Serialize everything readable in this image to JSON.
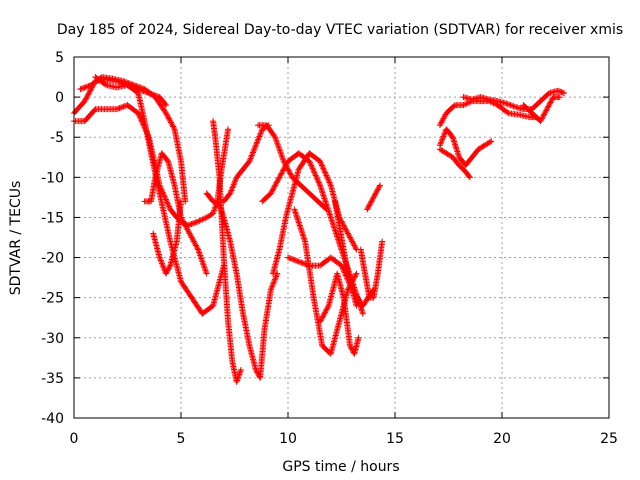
{
  "chart_data": {
    "type": "scatter",
    "title": "Day 185 of 2024, Sidereal Day-to-day VTEC variation (SDTVAR) for receiver xmis",
    "xlabel": "GPS time / hours",
    "ylabel": "SDTVAR / TECUs",
    "xlim": [
      0,
      25
    ],
    "ylim": [
      -40,
      5
    ],
    "xticks": [
      0,
      5,
      10,
      15,
      20,
      25
    ],
    "yticks": [
      5,
      0,
      -5,
      -10,
      -15,
      -20,
      -25,
      -30,
      -35,
      -40
    ],
    "grid": true,
    "marker": "plus",
    "color": "#ff0000",
    "series": [
      {
        "x": [
          0,
          0.5,
          1,
          1.5,
          2,
          2.5,
          3,
          3.3,
          3.6,
          4,
          4.5,
          5,
          5.5,
          6,
          6.5,
          7
        ],
        "y": [
          -2,
          -0.5,
          2,
          2.2,
          2,
          1.5,
          0.5,
          -3,
          -7,
          -12,
          -18,
          -23,
          -25,
          -27,
          -26,
          -21
        ]
      },
      {
        "x": [
          0,
          0.5,
          1,
          1.5,
          2,
          2.5,
          3,
          3.5,
          4,
          4.5,
          4.8,
          5,
          5.3
        ],
        "y": [
          -3,
          -3,
          -1.5,
          -1.5,
          -1.5,
          -1,
          -2,
          -5,
          -11,
          -14,
          -15,
          -15.5,
          -16
        ]
      },
      {
        "x": [
          0.3,
          0.8,
          1.3,
          1.8,
          2.3,
          2.8,
          3.3,
          3.8,
          4.3,
          4.7,
          5,
          5.2
        ],
        "y": [
          1,
          1.5,
          2.5,
          2.3,
          2,
          1.5,
          1,
          0,
          -2,
          -4,
          -8,
          -13
        ]
      },
      {
        "x": [
          3.3,
          3.6,
          3.8,
          4.1,
          4.4,
          4.7,
          5,
          5.4,
          5.8,
          6.2
        ],
        "y": [
          -13,
          -13,
          -10,
          -7,
          -8,
          -11,
          -15,
          -17,
          -19,
          -22
        ]
      },
      {
        "x": [
          3.7,
          4,
          4.3,
          4.5,
          4.8,
          5
        ],
        "y": [
          -17,
          -20,
          -22,
          -21,
          -18,
          -13
        ]
      },
      {
        "x": [
          1,
          1.5,
          2,
          2.5,
          3,
          3.5,
          4,
          4.3
        ],
        "y": [
          2.5,
          1.5,
          1.2,
          1.5,
          1,
          0.5,
          0,
          -1
        ]
      },
      {
        "x": [
          5.3,
          5.8,
          6.2,
          6.5,
          6.7,
          6.9,
          7.2
        ],
        "y": [
          -16,
          -15.5,
          -15,
          -14.5,
          -13,
          -9,
          -4
        ]
      },
      {
        "x": [
          6.2,
          6.5,
          6.8,
          7,
          7.3,
          7.6,
          7.9,
          8.2,
          8.5,
          8.7,
          8.9,
          9.2,
          9.5
        ],
        "y": [
          -12,
          -13,
          -13.5,
          -15,
          -18,
          -22,
          -27,
          -31,
          -34,
          -35,
          -29,
          -24,
          -22
        ]
      },
      {
        "x": [
          6.5,
          6.6,
          6.8,
          7,
          7.2,
          7.4,
          7.6,
          7.8
        ],
        "y": [
          -3,
          -5,
          -10,
          -20,
          -28,
          -33,
          -35.5,
          -34
        ]
      },
      {
        "x": [
          7,
          7.3,
          7.6,
          7.9,
          8.2,
          8.5,
          8.8,
          9.1
        ],
        "y": [
          -13,
          -12,
          -10,
          -9,
          -8,
          -6,
          -4,
          -3.5
        ]
      },
      {
        "x": [
          8.6,
          9,
          9.4,
          9.8,
          10.2,
          10.6,
          11,
          11.4,
          11.8
        ],
        "y": [
          -3.5,
          -3.5,
          -5,
          -8,
          -10,
          -11,
          -12,
          -13,
          -14
        ]
      },
      {
        "x": [
          8.8,
          9.2,
          9.6,
          10,
          10.5,
          11,
          11.5,
          12,
          12.5,
          13,
          13.5
        ],
        "y": [
          -13,
          -12,
          -10,
          -8,
          -7,
          -8,
          -11,
          -15,
          -19,
          -23,
          -27
        ]
      },
      {
        "x": [
          9.3,
          9.6,
          9.9,
          10.2,
          10.5,
          11,
          11.5,
          12,
          12.4,
          12.8,
          13.2
        ],
        "y": [
          -22,
          -19,
          -15,
          -12,
          -9,
          -7,
          -8,
          -11,
          -15,
          -17,
          -19
        ]
      },
      {
        "x": [
          10,
          10.5,
          11,
          11.5,
          12,
          12.5,
          13,
          13.5,
          14
        ],
        "y": [
          -20,
          -20.5,
          -21,
          -21,
          -20,
          -21,
          -24,
          -26,
          -24
        ]
      },
      {
        "x": [
          10.3,
          10.8,
          11.2,
          11.6,
          12,
          12.4,
          12.8,
          13.2
        ],
        "y": [
          -14,
          -18,
          -25,
          -31,
          -32,
          -28,
          -24,
          -22
        ]
      },
      {
        "x": [
          11.5,
          11.9,
          12.3,
          12.6,
          12.9,
          13.1,
          13.3
        ],
        "y": [
          -28,
          -26,
          -22,
          -25,
          -31,
          -32,
          -30
        ]
      },
      {
        "x": [
          12.2,
          12.4,
          12.6,
          12.8,
          13,
          13.2
        ],
        "y": [
          -13,
          -16,
          -19,
          -22,
          -24,
          -26
        ]
      },
      {
        "x": [
          13.4,
          13.6,
          13.8,
          14,
          14.2,
          14.4
        ],
        "y": [
          -19,
          -22,
          -25,
          -25,
          -22,
          -18
        ]
      },
      {
        "x": [
          13.7,
          13.9,
          14.1,
          14.3
        ],
        "y": [
          -14,
          -13,
          -12,
          -11
        ]
      },
      {
        "x": [
          17.1,
          17.4,
          17.8,
          18.2,
          18.6,
          19,
          19.4,
          19.8,
          20.3,
          20.8,
          21.3,
          21.6
        ],
        "y": [
          -3.5,
          -2,
          -1,
          -1,
          -0.5,
          -0.5,
          -0.5,
          -1,
          -2,
          -2.2,
          -2.5,
          -2.5
        ]
      },
      {
        "x": [
          17.1,
          17.4,
          17.7,
          18,
          18.3,
          18.6,
          18.9,
          19.2,
          19.5
        ],
        "y": [
          -6,
          -4,
          -5,
          -7.5,
          -8.5,
          -7.5,
          -6.5,
          -6,
          -5.5
        ]
      },
      {
        "x": [
          17.1,
          17.4,
          17.7,
          18,
          18.3,
          18.5
        ],
        "y": [
          -6.5,
          -7,
          -7.5,
          -8.5,
          -9.3,
          -10
        ]
      },
      {
        "x": [
          18.2,
          18.6,
          19,
          19.4,
          19.8,
          20.2,
          20.6,
          21,
          21.4,
          21.8,
          22.2,
          22.6,
          22.9
        ],
        "y": [
          0,
          -0.3,
          0,
          -0.3,
          -0.5,
          -0.8,
          -1.2,
          -1.5,
          -1.5,
          -0.5,
          0.5,
          0.8,
          0.5
        ]
      },
      {
        "x": [
          21,
          21.4,
          21.8,
          22.1,
          22.4,
          22.7
        ],
        "y": [
          -1,
          -2,
          -3,
          -1.5,
          0,
          0
        ]
      }
    ]
  }
}
